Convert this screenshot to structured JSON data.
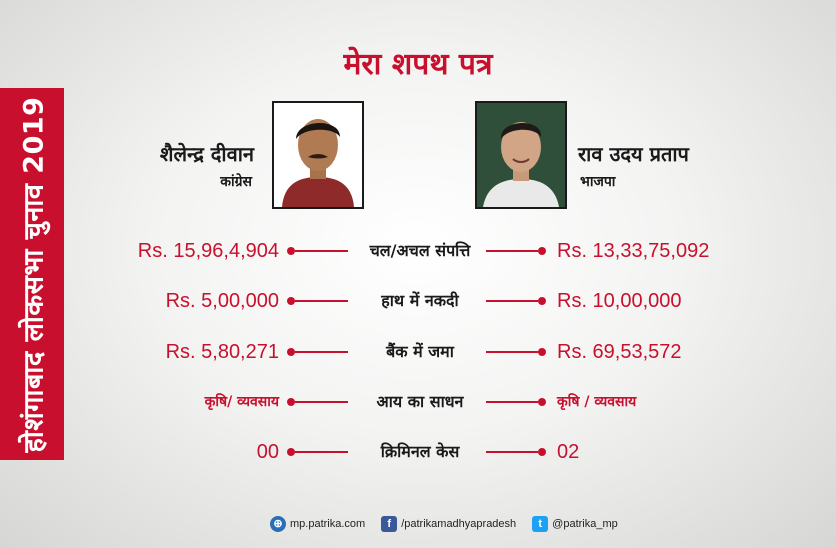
{
  "banner": {
    "text": "होशंगाबाद लोकसभा चुनाव 2019"
  },
  "title": "मेरा शपथ पत्र",
  "candidates": {
    "left": {
      "name": "शैलेन्द्र दीवान",
      "party": "कांग्रेस"
    },
    "right": {
      "name": "राव उदय प्रताप",
      "party": "भाजपा"
    }
  },
  "rows": [
    {
      "label": "चल/अचल संपत्ति",
      "left": "Rs. 15,96,4,904",
      "right": "Rs. 13,33,75,092"
    },
    {
      "label": "हाथ में नकदी",
      "left": "Rs. 5,00,000",
      "right": "Rs. 10,00,000"
    },
    {
      "label": "बैंक में जमा",
      "left": "Rs. 5,80,271",
      "right": "Rs. 69,53,572"
    },
    {
      "label": "आय का साधन",
      "left": "कृषि/ व्यवसाय",
      "right": "कृषि / व्यवसाय"
    },
    {
      "label": "क्रिमिनल केस",
      "left": "00",
      "right": "02"
    }
  ],
  "footer": {
    "website": "mp.patrika.com",
    "facebook": "/patrikamadhyapradesh",
    "twitter": "@patrika_mp"
  },
  "colors": {
    "accent": "#c8102e"
  },
  "icons": [
    "globe-icon",
    "facebook-icon",
    "twitter-icon"
  ]
}
